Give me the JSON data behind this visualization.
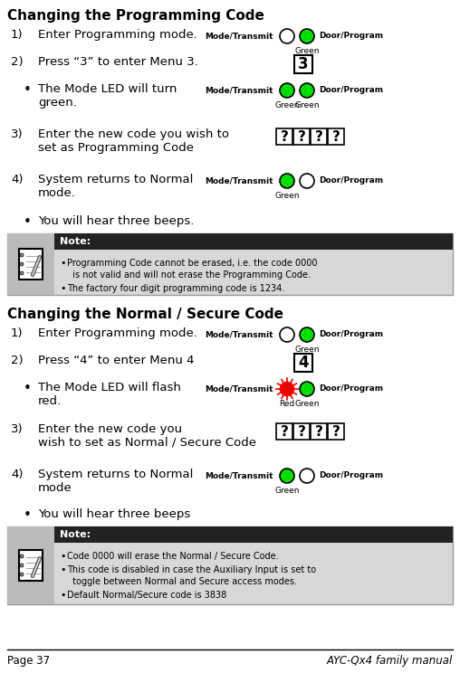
{
  "title1": "Changing the Programming Code",
  "title2": "Changing the Normal / Secure Code",
  "bg_color": "#ffffff",
  "green_color": "#00dd00",
  "red_color": "#ee0000",
  "footer_left": "Page 37",
  "footer_right": "AYC-Qx4 family manual",
  "note1_bullets": [
    "Programming Code cannot be erased, i.e. the code 0000\n  is not valid and will not erase the Programming Code.",
    "The factory four digit programming code is 1234."
  ],
  "note2_bullets": [
    "Code 0000 will erase the Normal / Secure Code.",
    "This code is disabled in case the Auxiliary Input is set to\n  toggle between Normal and Secure access modes.",
    "Default Normal/Secure code is 3838"
  ]
}
